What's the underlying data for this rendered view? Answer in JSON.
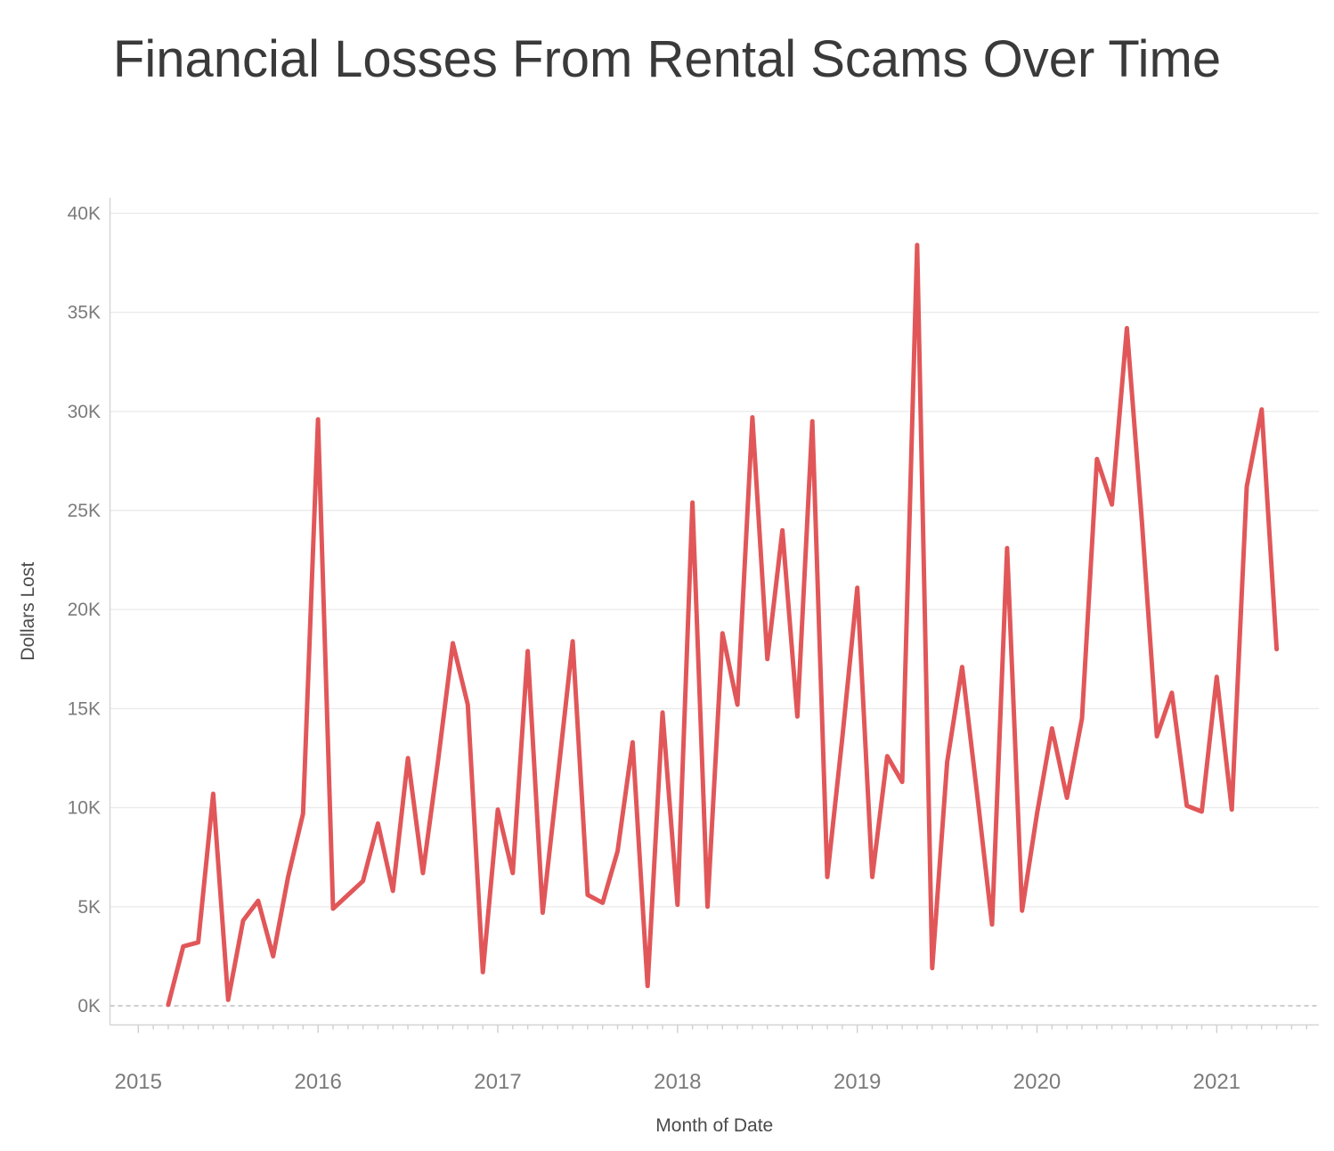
{
  "title": "Financial Losses From Rental Scams Over Time",
  "chart_data": {
    "type": "line",
    "title": "Financial Losses From Rental Scams Over Time",
    "xlabel": "Month of Date",
    "ylabel": "Dollars Lost",
    "unit": "USD",
    "line_color": "#e15759",
    "grid": true,
    "zero_line_style": "dashed",
    "ylim": [
      0,
      40000
    ],
    "y_tick_labels": [
      "0K",
      "5K",
      "10K",
      "15K",
      "20K",
      "25K",
      "30K",
      "35K",
      "40K"
    ],
    "y_tick_values": [
      0,
      5000,
      10000,
      15000,
      20000,
      25000,
      30000,
      35000,
      40000
    ],
    "x_tick_labels": [
      "2015",
      "2016",
      "2017",
      "2018",
      "2019",
      "2020",
      "2021"
    ],
    "x": [
      "2015-03",
      "2015-04",
      "2015-05",
      "2015-06",
      "2015-07",
      "2015-08",
      "2015-09",
      "2015-10",
      "2015-11",
      "2015-12",
      "2016-01",
      "2016-02",
      "2016-03",
      "2016-04",
      "2016-05",
      "2016-06",
      "2016-07",
      "2016-08",
      "2016-09",
      "2016-10",
      "2016-11",
      "2016-12",
      "2017-01",
      "2017-02",
      "2017-03",
      "2017-04",
      "2017-05",
      "2017-06",
      "2017-07",
      "2017-08",
      "2017-09",
      "2017-10",
      "2017-11",
      "2017-12",
      "2018-01",
      "2018-02",
      "2018-03",
      "2018-04",
      "2018-05",
      "2018-06",
      "2018-07",
      "2018-08",
      "2018-09",
      "2018-10",
      "2018-11",
      "2018-12",
      "2019-01",
      "2019-02",
      "2019-03",
      "2019-04",
      "2019-05",
      "2019-06",
      "2019-07",
      "2019-08",
      "2019-09",
      "2019-10",
      "2019-11",
      "2019-12",
      "2020-01",
      "2020-02",
      "2020-03",
      "2020-04",
      "2020-05",
      "2020-06",
      "2020-07",
      "2020-08",
      "2020-09",
      "2020-10",
      "2020-11",
      "2020-12",
      "2021-01",
      "2021-02",
      "2021-03",
      "2021-04",
      "2021-05"
    ],
    "values": [
      50,
      3000,
      3200,
      10700,
      300,
      4300,
      5300,
      2500,
      6500,
      9700,
      29600,
      4900,
      5600,
      6300,
      9200,
      5800,
      12500,
      6700,
      12300,
      18300,
      15200,
      1700,
      9900,
      6700,
      17900,
      4700,
      11500,
      18400,
      5600,
      5200,
      7800,
      13300,
      1000,
      14800,
      5100,
      25400,
      5000,
      18800,
      15200,
      29700,
      17500,
      24000,
      14600,
      29500,
      6500,
      13500,
      21100,
      6500,
      12600,
      11300,
      38400,
      1900,
      12300,
      17100,
      10700,
      4100,
      23100,
      4800,
      9700,
      14000,
      10500,
      14500,
      27600,
      25300,
      34200,
      24500,
      13600,
      15800,
      10100,
      9800,
      16600,
      9900,
      26200,
      30100,
      18000
    ]
  }
}
